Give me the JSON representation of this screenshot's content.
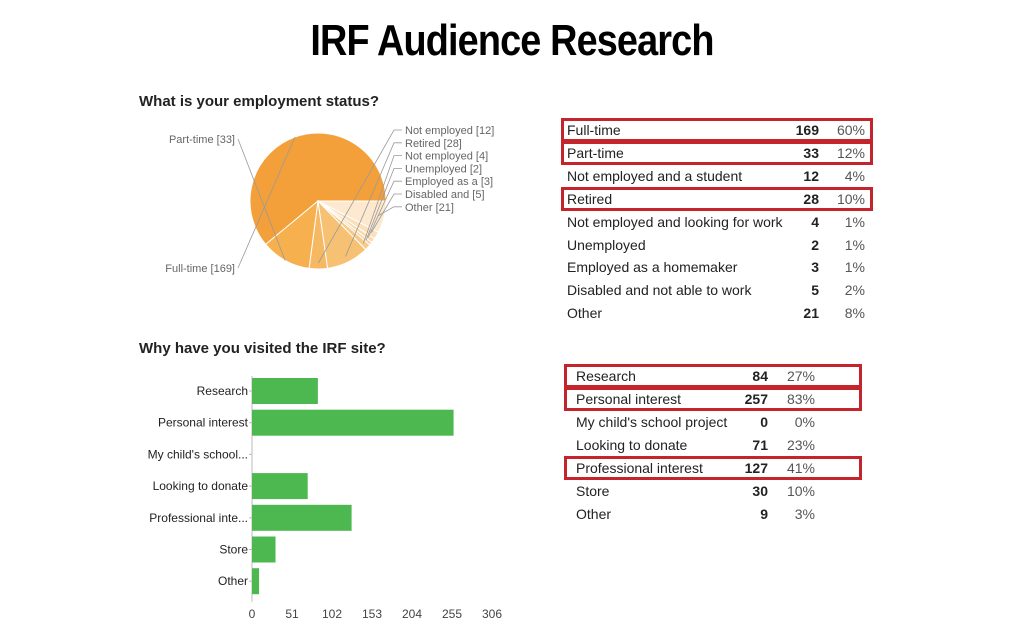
{
  "title": "IRF Audience Research",
  "chart_data": [
    {
      "type": "pie",
      "title": "What is your employment status?",
      "slices": [
        {
          "label": "Full-time [169]",
          "value": 169,
          "color": "#f4a03a"
        },
        {
          "label": "Part-time [33]",
          "value": 33,
          "color": "#f6b04e"
        },
        {
          "label": "Not employed [12]",
          "value": 12,
          "color": "#f6b862"
        },
        {
          "label": "Retired [28]",
          "value": 28,
          "color": "#f7c173"
        },
        {
          "label": "Not employed  [4]",
          "value": 4,
          "color": "#f8ca88"
        },
        {
          "label": "Unemployed [2]",
          "value": 2,
          "color": "#f9d29a"
        },
        {
          "label": "Employed as a [3]",
          "value": 3,
          "color": "#fad9aa"
        },
        {
          "label": "Disabled and  [5]",
          "value": 5,
          "color": "#fbe0bb"
        },
        {
          "label": "Other [21]",
          "value": 21,
          "color": "#fde9cf"
        }
      ]
    },
    {
      "type": "bar",
      "orientation": "horizontal",
      "title": "Why have you visited the IRF site?",
      "categories": [
        "Research",
        "Personal interest",
        "My child's school...",
        "Looking to donate",
        "Professional inte...",
        "Store",
        "Other"
      ],
      "values": [
        84,
        257,
        0,
        71,
        127,
        30,
        9
      ],
      "xlim": [
        0,
        306
      ],
      "xticks": [
        "0",
        "51",
        "102",
        "153",
        "204",
        "255",
        "306"
      ],
      "color": "#4cb84f"
    }
  ],
  "employment_table": [
    {
      "label": "Full-time",
      "count": "169",
      "pct": "60%",
      "highlight": true
    },
    {
      "label": "Part-time",
      "count": "33",
      "pct": "12%",
      "highlight": true
    },
    {
      "label": "Not employed and a student",
      "count": "12",
      "pct": "4%",
      "highlight": false
    },
    {
      "label": "Retired",
      "count": "28",
      "pct": "10%",
      "highlight": true
    },
    {
      "label": "Not employed and looking for work",
      "count": "4",
      "pct": "1%",
      "highlight": false
    },
    {
      "label": "Unemployed",
      "count": "2",
      "pct": "1%",
      "highlight": false
    },
    {
      "label": "Employed as a homemaker",
      "count": "3",
      "pct": "1%",
      "highlight": false
    },
    {
      "label": "Disabled and not able to work",
      "count": "5",
      "pct": "2%",
      "highlight": false
    },
    {
      "label": "Other",
      "count": "21",
      "pct": "8%",
      "highlight": false
    }
  ],
  "visit_table": [
    {
      "label": "Research",
      "count": "84",
      "pct": "27%",
      "highlight": true
    },
    {
      "label": "Personal interest",
      "count": "257",
      "pct": "83%",
      "highlight": true
    },
    {
      "label": "My child's school project",
      "count": "0",
      "pct": "0%",
      "highlight": false
    },
    {
      "label": "Looking to donate",
      "count": "71",
      "pct": "23%",
      "highlight": false
    },
    {
      "label": "Professional interest",
      "count": "127",
      "pct": "41%",
      "highlight": true
    },
    {
      "label": "Store",
      "count": "30",
      "pct": "10%",
      "highlight": false
    },
    {
      "label": "Other",
      "count": "9",
      "pct": "3%",
      "highlight": false
    }
  ],
  "highlight_color": "#c4242b"
}
